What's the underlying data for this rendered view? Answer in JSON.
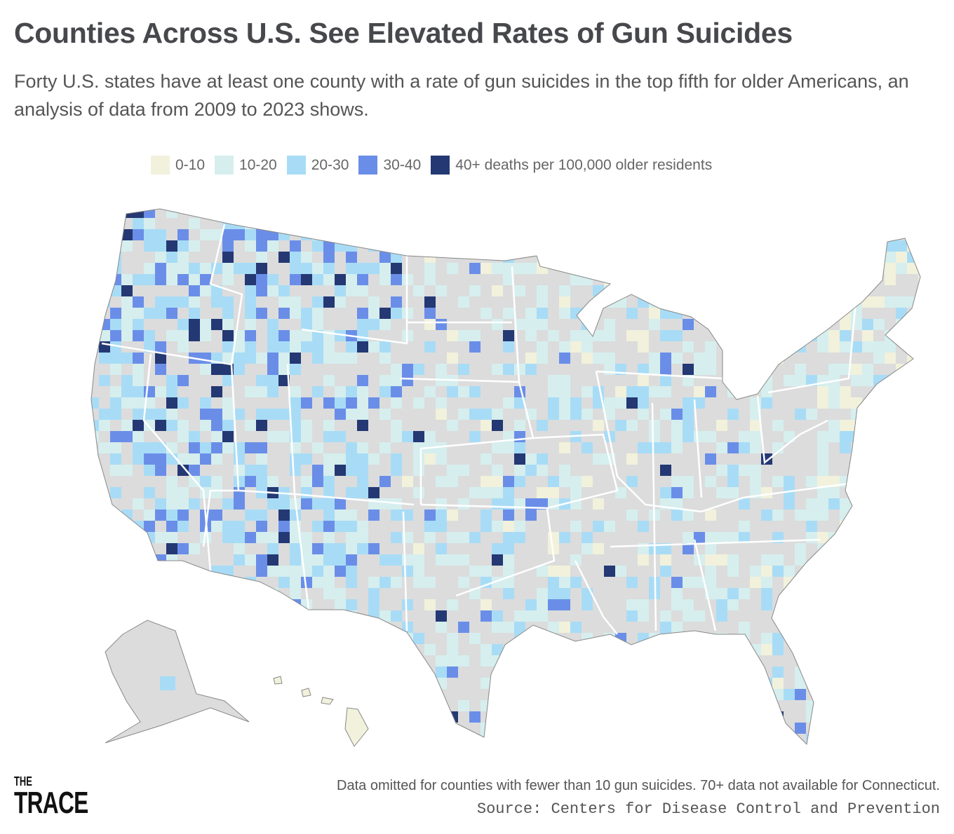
{
  "header": {
    "title": "Counties Across U.S. See Elevated Rates of Gun Suicides",
    "subtitle": "Forty U.S. states have at least one county with a rate of gun suicides in the top fifth for older Americans, an analysis of data from 2009 to 2023 shows."
  },
  "legend": {
    "items": [
      {
        "label": "0-10",
        "color": "#f2f1dc"
      },
      {
        "label": "10-20",
        "color": "#d6eeee"
      },
      {
        "label": "20-30",
        "color": "#a8dcf6"
      },
      {
        "label": "30-40",
        "color": "#6a8ee8"
      },
      {
        "label": "40+ deaths per 100,000 older residents",
        "color": "#243873"
      }
    ],
    "no_data_color": "#dcdcdc"
  },
  "footer": {
    "note": "Data omitted for counties with fewer than 10 gun suicides. 70+ data not available for Connecticut.",
    "source": "Source: Centers for Disease Control and Prevention",
    "logo_line1": "THE",
    "logo_line2": "TRACE"
  }
}
